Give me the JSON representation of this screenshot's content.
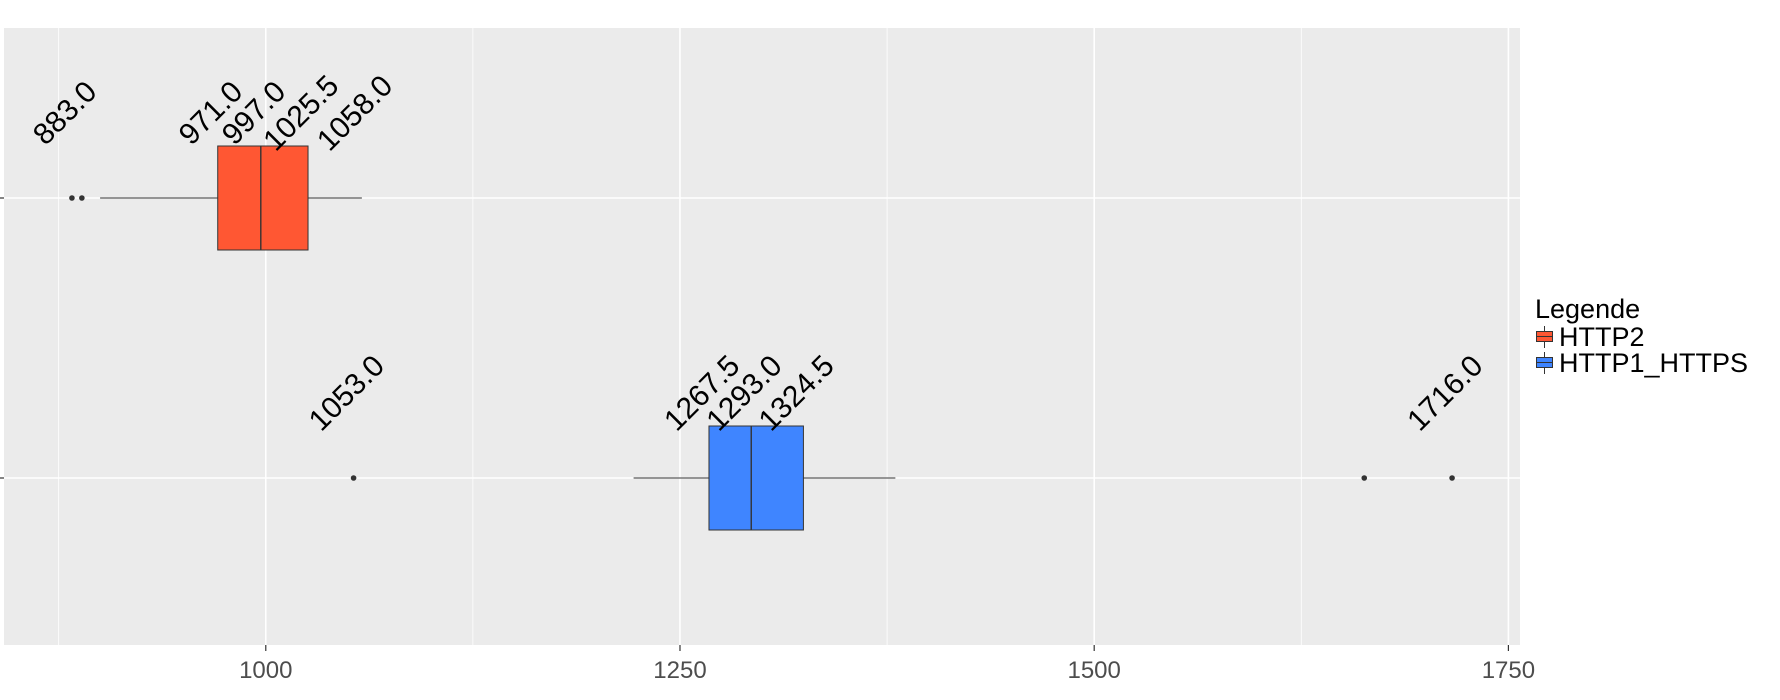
{
  "chart_data": {
    "type": "boxplot",
    "orientation": "horizontal",
    "xlim": [
      842,
      1757
    ],
    "x_ticks": [
      "1000",
      "1250",
      "1500",
      "1750"
    ],
    "x_tick_values": [
      1000,
      1250,
      1500,
      1750
    ],
    "grid": true,
    "legend_position": "right",
    "colors": {
      "panel": "#ebebeb",
      "grid": "#ffffff",
      "box_outline": "#333333"
    },
    "legend": {
      "title": "Legende",
      "entries": [
        {
          "label": "HTTP2",
          "color": "#FF5733"
        },
        {
          "label": "HTTP1_HTTPS",
          "color": "#3F85FF"
        }
      ]
    },
    "series": [
      {
        "name": "HTTP2",
        "color": "#FF5733",
        "row": 0,
        "min": 900,
        "q1": 971,
        "median": 997,
        "q3": 1025.5,
        "max": 1058,
        "outliers": [
          883,
          889
        ],
        "labels": [
          "883.0",
          "971.0",
          "997.0",
          "1025.5",
          "1058.0"
        ],
        "label_values": [
          883,
          971,
          997,
          1025.5,
          1058
        ]
      },
      {
        "name": "HTTP1_HTTPS",
        "color": "#3F85FF",
        "row": 1,
        "min": 1222,
        "q1": 1267.5,
        "median": 1293,
        "q3": 1324.5,
        "max": 1380,
        "outliers": [
          1053,
          1663,
          1716
        ],
        "labels": [
          "1053.0",
          "1267.5",
          "1293.0",
          "1324.5",
          "1716.0"
        ],
        "label_values": [
          1053,
          1267.5,
          1293,
          1324.5,
          1716
        ]
      }
    ]
  }
}
